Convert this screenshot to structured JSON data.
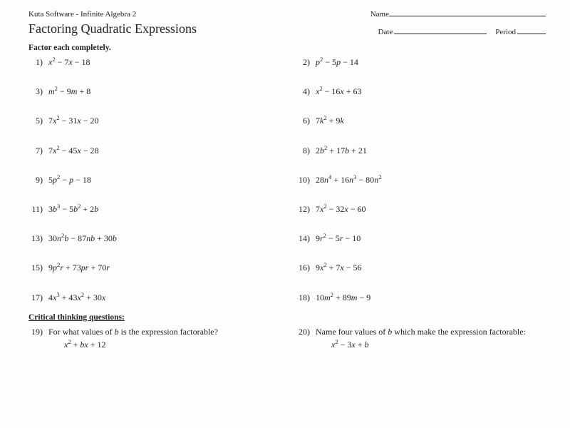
{
  "header": {
    "software": "Kuta Software - Infinite Algebra 2",
    "name_label": "Name",
    "date_label": "Date",
    "period_label": "Period"
  },
  "title": "Factoring Quadratic Expressions",
  "instruction": "Factor each completely.",
  "problems": [
    {
      "n": "1)",
      "html": "x<sup>2</sup> <span class='n'>− 7</span>x <span class='n'>− 18</span>"
    },
    {
      "n": "2)",
      "html": "p<sup>2</sup> <span class='n'>− 5</span>p <span class='n'>− 14</span>"
    },
    {
      "n": "3)",
      "html": "m<sup>2</sup> <span class='n'>− 9</span>m <span class='n'>+ 8</span>"
    },
    {
      "n": "4)",
      "html": "x<sup>2</sup> <span class='n'>− 16</span>x <span class='n'>+ 63</span>"
    },
    {
      "n": "5)",
      "html": "<span class='n'>7</span>x<sup>2</sup> <span class='n'>− 31</span>x <span class='n'>− 20</span>"
    },
    {
      "n": "6)",
      "html": "<span class='n'>7</span>k<sup>2</sup> <span class='n'>+ 9</span>k"
    },
    {
      "n": "7)",
      "html": "<span class='n'>7</span>x<sup>2</sup> <span class='n'>− 45</span>x <span class='n'>− 28</span>"
    },
    {
      "n": "8)",
      "html": "<span class='n'>2</span>b<sup>2</sup> <span class='n'>+ 17</span>b <span class='n'>+ 21</span>"
    },
    {
      "n": "9)",
      "html": "<span class='n'>5</span>p<sup>2</sup> <span class='n'>−</span> p <span class='n'>− 18</span>"
    },
    {
      "n": "10)",
      "html": "<span class='n'>28</span>n<sup>4</sup> <span class='n'>+ 16</span>n<sup>3</sup> <span class='n'>− 80</span>n<sup>2</sup>"
    },
    {
      "n": "11)",
      "html": "<span class='n'>3</span>b<sup>3</sup> <span class='n'>− 5</span>b<sup>2</sup> <span class='n'>+ 2</span>b"
    },
    {
      "n": "12)",
      "html": "<span class='n'>7</span>x<sup>2</sup> <span class='n'>− 32</span>x <span class='n'>− 60</span>"
    },
    {
      "n": "13)",
      "html": "<span class='n'>30</span>n<sup>2</sup>b <span class='n'>− 87</span>nb <span class='n'>+ 30</span>b"
    },
    {
      "n": "14)",
      "html": "<span class='n'>9</span>r<sup>2</sup> <span class='n'>− 5</span>r <span class='n'>− 10</span>"
    },
    {
      "n": "15)",
      "html": "<span class='n'>9</span>p<sup>2</sup>r <span class='n'>+ 73</span>pr <span class='n'>+ 70</span>r"
    },
    {
      "n": "16)",
      "html": "<span class='n'>9</span>x<sup>2</sup> <span class='n'>+ 7</span>x <span class='n'>− 56</span>"
    },
    {
      "n": "17)",
      "html": "<span class='n'>4</span>x<sup>3</sup> <span class='n'>+ 43</span>x<sup>2</sup> <span class='n'>+ 30</span>x"
    },
    {
      "n": "18)",
      "html": "<span class='n'>10</span>m<sup>2</sup> <span class='n'>+ 89</span>m <span class='n'>− 9</span>"
    }
  ],
  "critical_heading": "Critical thinking questions:",
  "critical": [
    {
      "n": "19)",
      "q": "For what values of <i>b</i> is the expression factorable?",
      "expr": "x<sup>2</sup> <span class='n'>+</span> bx <span class='n'>+ 12</span>"
    },
    {
      "n": "20)",
      "q": "Name four values of <i>b</i> which make the expression factorable:",
      "expr": "x<sup>2</sup> <span class='n'>− 3</span>x <span class='n'>+</span> b"
    }
  ],
  "style": {
    "bg": "#fdfdfd",
    "text": "#222222",
    "name_blank_w": 220,
    "date_blank_w": 130,
    "period_blank_w": 40,
    "base_fontsize": 11.5,
    "title_fontsize": 18,
    "row_gap": 25
  }
}
